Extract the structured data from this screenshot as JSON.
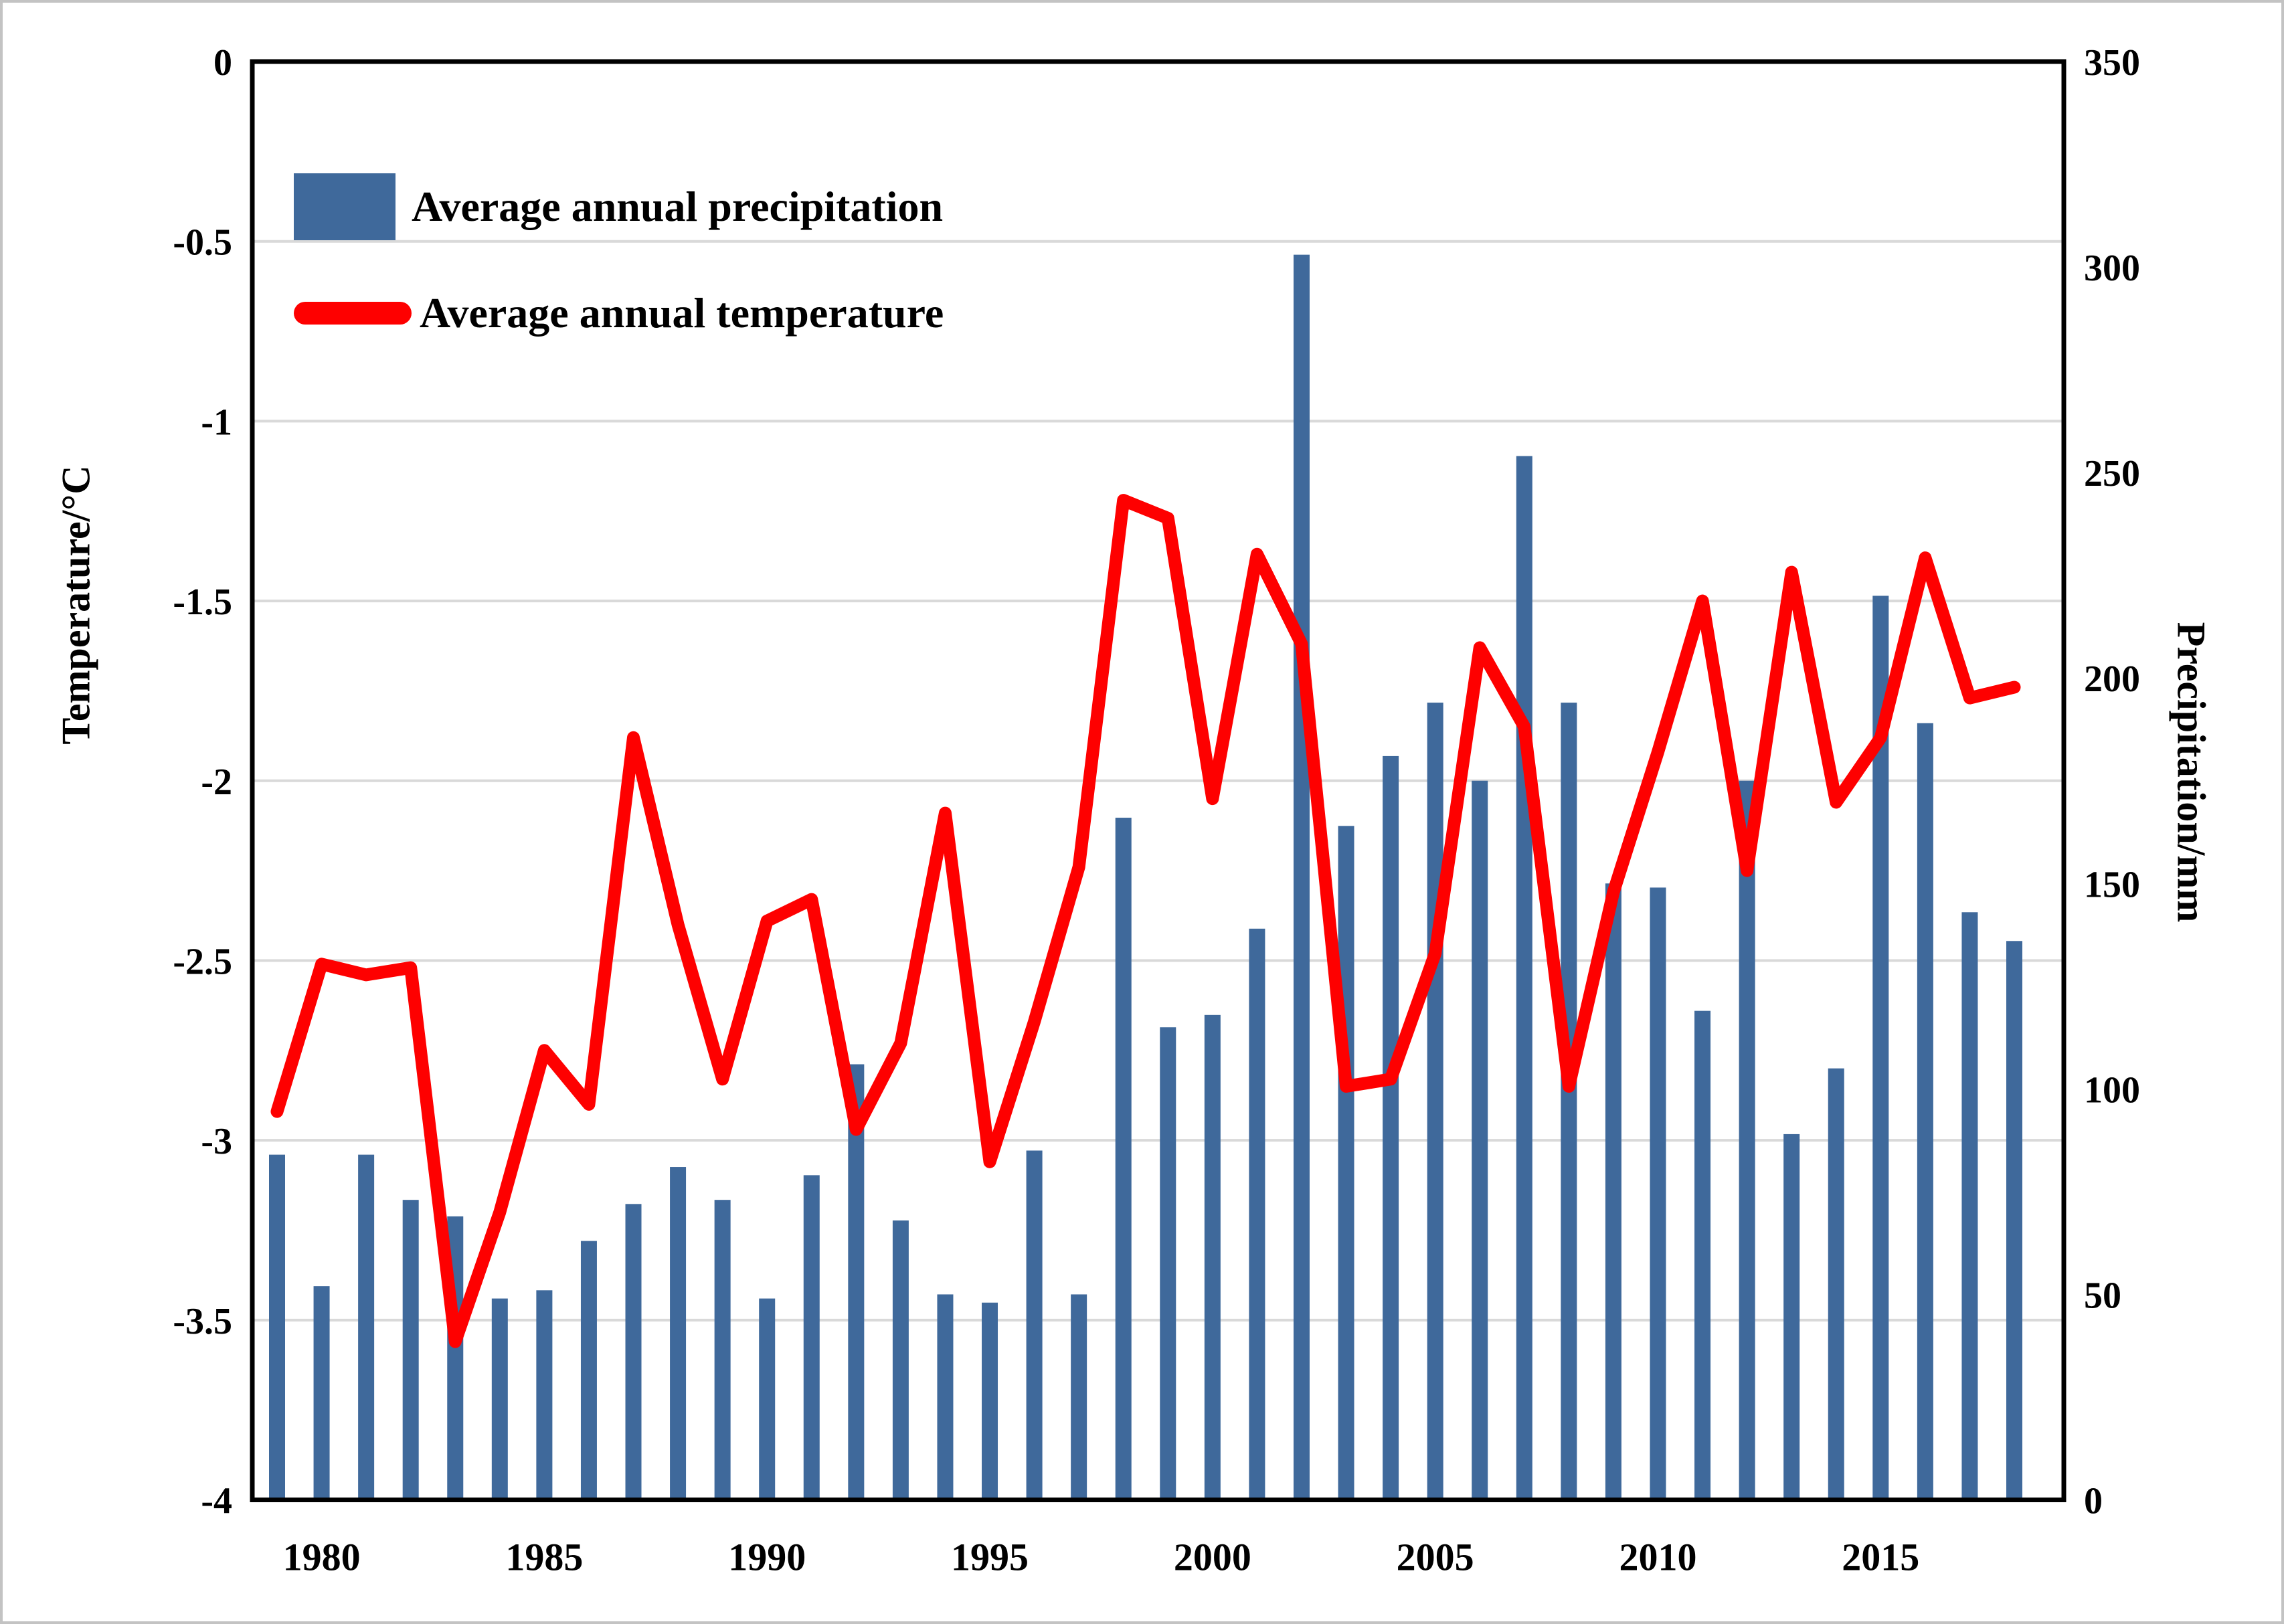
{
  "figure": {
    "left_axis_title": "Temperature/°C",
    "right_axis_title": "Precipitation/mm",
    "legend": {
      "precipitation_label": "Average annual precipitation",
      "temperature_label": "Average annual temperature"
    },
    "colors": {
      "bar": "#3F699B",
      "line": "#FE0000",
      "gridline": "#D9D9D9",
      "axis_box": "#000000",
      "text": "#000000",
      "figure_frame": "#C3C3C3"
    }
  },
  "chart_data": {
    "type": "bar",
    "title": "",
    "xlabel": "",
    "x": [
      1979,
      1980,
      1981,
      1982,
      1983,
      1984,
      1985,
      1986,
      1987,
      1988,
      1989,
      1990,
      1991,
      1992,
      1993,
      1994,
      1995,
      1996,
      1997,
      1998,
      1999,
      2000,
      2001,
      2002,
      2003,
      2004,
      2005,
      2006,
      2007,
      2008,
      2009,
      2010,
      2011,
      2012,
      2013,
      2014,
      2015,
      2016,
      2017,
      2018
    ],
    "x_tick_labels": [
      "1980",
      "1985",
      "1990",
      "1995",
      "2000",
      "2005",
      "2010",
      "2015"
    ],
    "grid": "horizontal gridlines every 0.5 on left axis, light gray",
    "legend_position": "top-left inside plot",
    "series": [
      {
        "name": "Average annual precipitation",
        "type": "bar",
        "axis": "right",
        "color": "#3F699B",
        "values": [
          84,
          52,
          84,
          73,
          69,
          49,
          51,
          63,
          72,
          81,
          73,
          49,
          79,
          106,
          68,
          50,
          48,
          85,
          50,
          166,
          115,
          118,
          139,
          303,
          164,
          181,
          194,
          175,
          254,
          194,
          150,
          149,
          119,
          175,
          89,
          105,
          220,
          189,
          143,
          136
        ]
      },
      {
        "name": "Average annual temperature",
        "type": "line",
        "axis": "left",
        "color": "#FE0000",
        "values": [
          -2.92,
          -2.51,
          -2.54,
          -2.52,
          -3.56,
          -3.2,
          -2.75,
          -2.9,
          -1.88,
          -2.4,
          -2.83,
          -2.39,
          -2.33,
          -2.97,
          -2.73,
          -2.09,
          -3.06,
          -2.67,
          -2.24,
          -1.22,
          -1.27,
          -2.05,
          -1.37,
          -1.62,
          -2.85,
          -2.83,
          -2.48,
          -1.63,
          -1.85,
          -2.85,
          -2.31,
          -1.92,
          -1.5,
          -2.25,
          -1.42,
          -2.06,
          -1.88,
          -1.38,
          -1.77,
          -1.74
        ]
      }
    ],
    "y_left": {
      "label": "Temperature/°C",
      "min": -4,
      "max": 0,
      "ticks": [
        {
          "value": 0,
          "label": "0"
        },
        {
          "value": -0.5,
          "label": "-0.5"
        },
        {
          "value": -1,
          "label": "-1"
        },
        {
          "value": -1.5,
          "label": "-1.5"
        },
        {
          "value": -2,
          "label": "-2"
        },
        {
          "value": -2.5,
          "label": "-2.5"
        },
        {
          "value": -3,
          "label": "-3"
        },
        {
          "value": -3.5,
          "label": "-3.5"
        },
        {
          "value": -4,
          "label": "-4"
        }
      ]
    },
    "y_right": {
      "label": "Precipitation/mm",
      "min": 0,
      "max": 350,
      "ticks": [
        {
          "value": 350,
          "label": "350"
        },
        {
          "value": 300,
          "label": "300"
        },
        {
          "value": 250,
          "label": "250"
        },
        {
          "value": 200,
          "label": "200"
        },
        {
          "value": 150,
          "label": "150"
        },
        {
          "value": 100,
          "label": "100"
        },
        {
          "value": 50,
          "label": "50"
        },
        {
          "value": 0,
          "label": "0"
        }
      ]
    }
  }
}
